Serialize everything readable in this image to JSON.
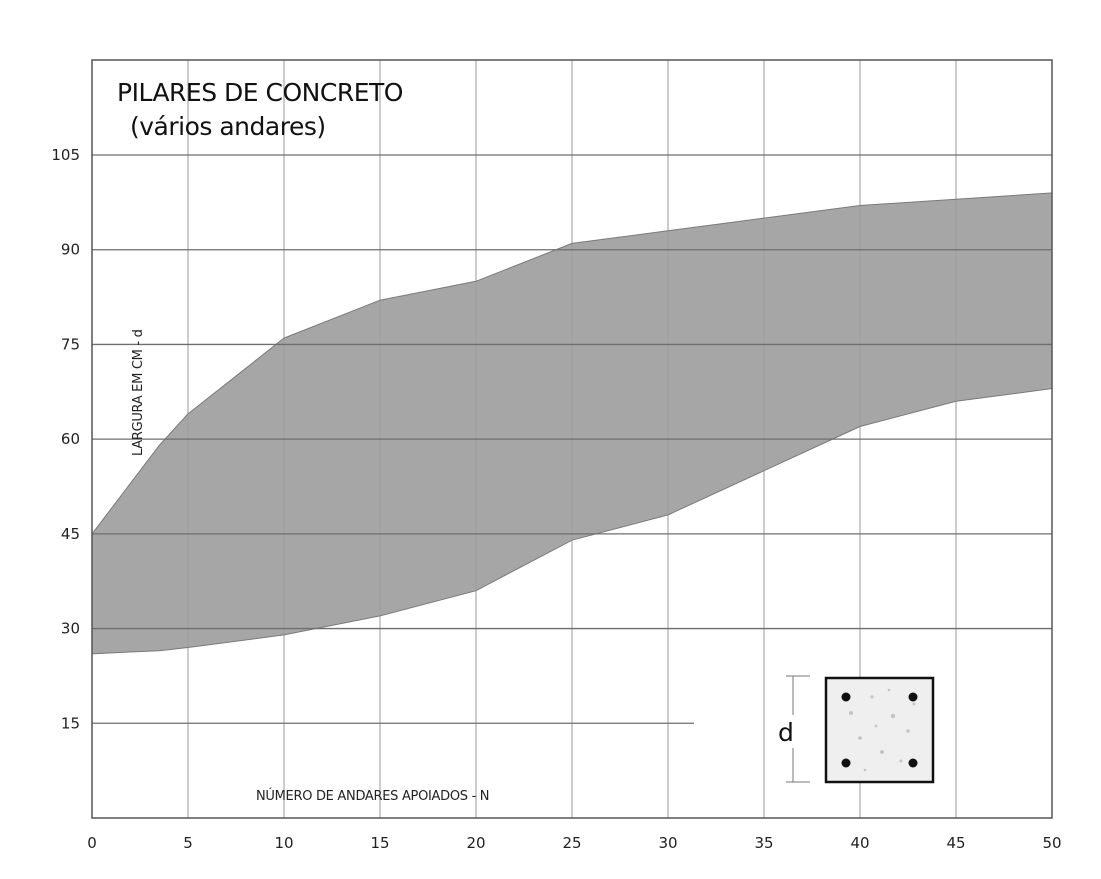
{
  "chart_data": {
    "type": "area",
    "title": "PILARES DE CONCRETO",
    "subtitle": "(vários andares)",
    "xlabel": "NÚMERO DE ANDARES APOIADOS - N",
    "ylabel": "LARGURA EM CM - d",
    "xlim": [
      0,
      50
    ],
    "ylim": [
      0,
      105
    ],
    "x_ticks": [
      "0",
      "5",
      "10",
      "15",
      "20",
      "25",
      "30",
      "35",
      "40",
      "45",
      "50"
    ],
    "y_ticks": [
      "15",
      "30",
      "45",
      "60",
      "75",
      "90",
      "105"
    ],
    "grid": true,
    "band": {
      "x": [
        0,
        3.5,
        5,
        10,
        15,
        20,
        25,
        30,
        35,
        40,
        45,
        50
      ],
      "upper": [
        45,
        59,
        64,
        76,
        82,
        85,
        91,
        93,
        95,
        97,
        98,
        99
      ],
      "lower": [
        26,
        26.5,
        27,
        29,
        32,
        36,
        44,
        48,
        55,
        62,
        66,
        68
      ]
    },
    "inset_label": "d",
    "colors": {
      "band": "#9e9e9e",
      "grid": "#6e6e6e",
      "background": "#ffffff"
    }
  }
}
